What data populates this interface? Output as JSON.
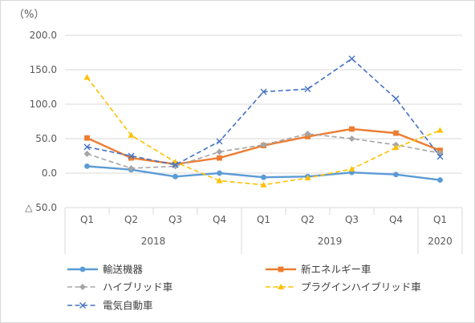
{
  "chart_data": {
    "type": "line",
    "title": "",
    "xlabel": "",
    "ylabel": "",
    "unit_label": "（%）",
    "ylim": [
      -50,
      200
    ],
    "yticks": [
      200,
      150,
      100,
      50,
      0,
      -50
    ],
    "ytick_labels": [
      "200.0",
      "150.0",
      "100.0",
      "50.0",
      "0.0",
      "△ 50.0"
    ],
    "categories": [
      "Q1",
      "Q2",
      "Q3",
      "Q4",
      "Q1",
      "Q2",
      "Q3",
      "Q4",
      "Q1"
    ],
    "year_groups": [
      {
        "label": "2018",
        "start": 0,
        "end": 3
      },
      {
        "label": "2019",
        "start": 4,
        "end": 7
      },
      {
        "label": "2020",
        "start": 8,
        "end": 8
      }
    ],
    "grid": true,
    "legend_position": "bottom",
    "series": [
      {
        "name": "輸送機器",
        "color": "#5b9bd5",
        "style": "solid",
        "marker": "circle",
        "values": [
          10,
          5,
          -5,
          0,
          -6,
          -5,
          1,
          -2,
          -10
        ]
      },
      {
        "name": "新エネルギー車",
        "color": "#ed7d31",
        "style": "solid",
        "marker": "square",
        "values": [
          51,
          22,
          13,
          22,
          40,
          53,
          64,
          58,
          33
        ]
      },
      {
        "name": "ハイブリッド車",
        "color": "#a5a5a5",
        "style": "dashed",
        "marker": "diamond",
        "values": [
          28,
          7,
          10,
          31,
          41,
          57,
          50,
          41,
          29
        ]
      },
      {
        "name": "プラグインハイブリッド車",
        "color": "#ffc000",
        "style": "dashed",
        "marker": "triangle",
        "values": [
          139,
          55,
          16,
          -11,
          -17,
          -7,
          6,
          37,
          62
        ]
      },
      {
        "name": "電気自動車",
        "color": "#4472c4",
        "style": "dashed",
        "marker": "x",
        "values": [
          38,
          25,
          12,
          46,
          118,
          122,
          166,
          108,
          24
        ]
      }
    ]
  }
}
